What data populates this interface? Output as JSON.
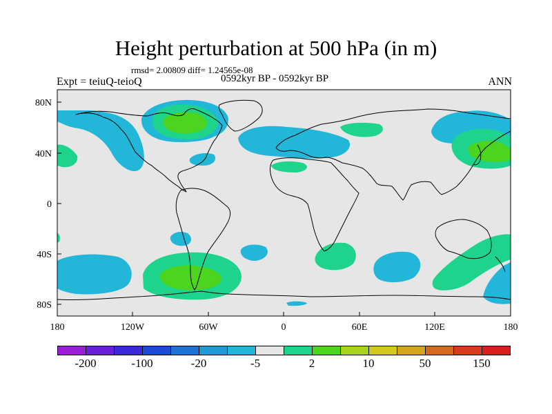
{
  "title": "Height perturbation at 500 hPa (in m)",
  "subtitle_stats": "rmsd= 2.00809 diff= 1.24565e-08",
  "experiment": "Expt = teiuQ-teioQ",
  "period": "0592kyr BP - 0592kyr BP",
  "season": "ANN",
  "lat_ticks": [
    "80N",
    "40N",
    "0",
    "40S",
    "80S"
  ],
  "lon_ticks": [
    "180",
    "120W",
    "60W",
    "0",
    "60E",
    "120E",
    "180"
  ],
  "colorbar": {
    "colors": [
      "#9a1ed8",
      "#6a1fd8",
      "#3a2ad8",
      "#1e4ad8",
      "#1f72d6",
      "#1f9ad6",
      "#22b6d8",
      "#e6e6e6",
      "#1ed48c",
      "#4cd41e",
      "#a8d41e",
      "#d4c81e",
      "#d4a61e",
      "#d46a1e",
      "#d83a1e",
      "#d81e1e"
    ],
    "labels": [
      "-200",
      "-100",
      "-20",
      "-5",
      "2",
      "10",
      "50",
      "150"
    ]
  },
  "map_colors": {
    "background": "#e6e6e6",
    "negative": "#22b6d8",
    "positive_light": "#1ed48c",
    "positive_strong": "#4cd41e"
  }
}
